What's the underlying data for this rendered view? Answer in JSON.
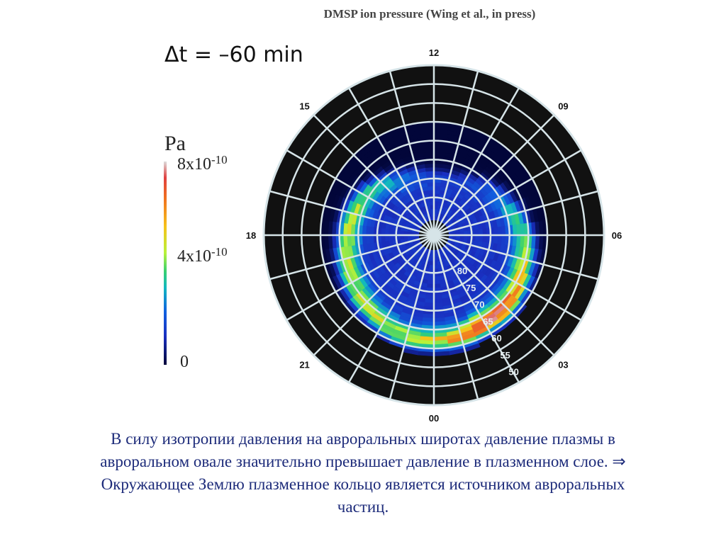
{
  "header": {
    "title": "DMSP ion pressure (Wing et al., in press)",
    "time_label": "Δt = –60 min"
  },
  "colorbar": {
    "unit": "Pa",
    "ticks": [
      {
        "mantissa": "8x10",
        "exp": "-10"
      },
      {
        "mantissa": "4x10",
        "exp": "-10"
      },
      {
        "mantissa": "0",
        "exp": ""
      }
    ],
    "colors": [
      "#02063a",
      "#1a2fc0",
      "#1060e0",
      "#12b8c0",
      "#38d070",
      "#b8f23a",
      "#f6c21a",
      "#f07020",
      "#e04040",
      "#dcdcdc"
    ]
  },
  "chart_data": {
    "type": "heatmap",
    "projection": "polar magnetic local time vs magnetic latitude",
    "title": "DMSP ion pressure (Wing et al., in press)",
    "time_offset": "Δt = –60 min",
    "mlt_labels": [
      "12",
      "09",
      "06",
      "03",
      "00",
      "21",
      "18",
      "15"
    ],
    "latitude_labels": [
      "80",
      "75",
      "70",
      "65",
      "60",
      "55",
      "50"
    ],
    "latitude_circles": [
      80,
      75,
      70,
      65,
      60,
      55,
      50
    ],
    "outer_latitude": 45,
    "colorbar_range_pa": [
      0,
      8e-10
    ],
    "colorbar_unit": "Pa",
    "mlt_sector_count": 24,
    "pressure_profile": [
      {
        "mlt": 0,
        "peak_lat": 62,
        "peak_fraction": 0.6
      },
      {
        "mlt": 1,
        "peak_lat": 62,
        "peak_fraction": 0.75
      },
      {
        "mlt": 2,
        "peak_lat": 63,
        "peak_fraction": 0.95
      },
      {
        "mlt": 3,
        "peak_lat": 63,
        "peak_fraction": 0.85
      },
      {
        "mlt": 4,
        "peak_lat": 64,
        "peak_fraction": 0.7
      },
      {
        "mlt": 5,
        "peak_lat": 65,
        "peak_fraction": 0.55
      },
      {
        "mlt": 6,
        "peak_lat": 66,
        "peak_fraction": 0.45
      },
      {
        "mlt": 7,
        "peak_lat": 68,
        "peak_fraction": 0.35
      },
      {
        "mlt": 8,
        "peak_lat": 70,
        "peak_fraction": 0.25
      },
      {
        "mlt": 9,
        "peak_lat": 72,
        "peak_fraction": 0.18
      },
      {
        "mlt": 10,
        "peak_lat": 74,
        "peak_fraction": 0.15
      },
      {
        "mlt": 11,
        "peak_lat": 75,
        "peak_fraction": 0.15
      },
      {
        "mlt": 12,
        "peak_lat": 75,
        "peak_fraction": 0.15
      },
      {
        "mlt": 13,
        "peak_lat": 74,
        "peak_fraction": 0.18
      },
      {
        "mlt": 14,
        "peak_lat": 73,
        "peak_fraction": 0.25
      },
      {
        "mlt": 15,
        "peak_lat": 71,
        "peak_fraction": 0.35
      },
      {
        "mlt": 16,
        "peak_lat": 69,
        "peak_fraction": 0.45
      },
      {
        "mlt": 17,
        "peak_lat": 68,
        "peak_fraction": 0.55
      },
      {
        "mlt": 18,
        "peak_lat": 67,
        "peak_fraction": 0.55
      },
      {
        "mlt": 19,
        "peak_lat": 66,
        "peak_fraction": 0.55
      },
      {
        "mlt": 20,
        "peak_lat": 65,
        "peak_fraction": 0.55
      },
      {
        "mlt": 21,
        "peak_lat": 64,
        "peak_fraction": 0.55
      },
      {
        "mlt": 22,
        "peak_lat": 63,
        "peak_fraction": 0.55
      },
      {
        "mlt": 23,
        "peak_lat": 62,
        "peak_fraction": 0.55
      }
    ]
  },
  "caption": {
    "line1": "В силу изотропии давления на авроральных широтах давление плазмы в",
    "line2": "авроральном овале значительно превышает давление в плазменном слое. ⇒",
    "line3": "Окружающее Землю плазменное кольцо является источником авроральных",
    "line4": "частиц."
  },
  "style": {
    "grid_color": "#d6e4e8",
    "outer_background": "#111111",
    "caption_color": "#1d2b7a"
  }
}
